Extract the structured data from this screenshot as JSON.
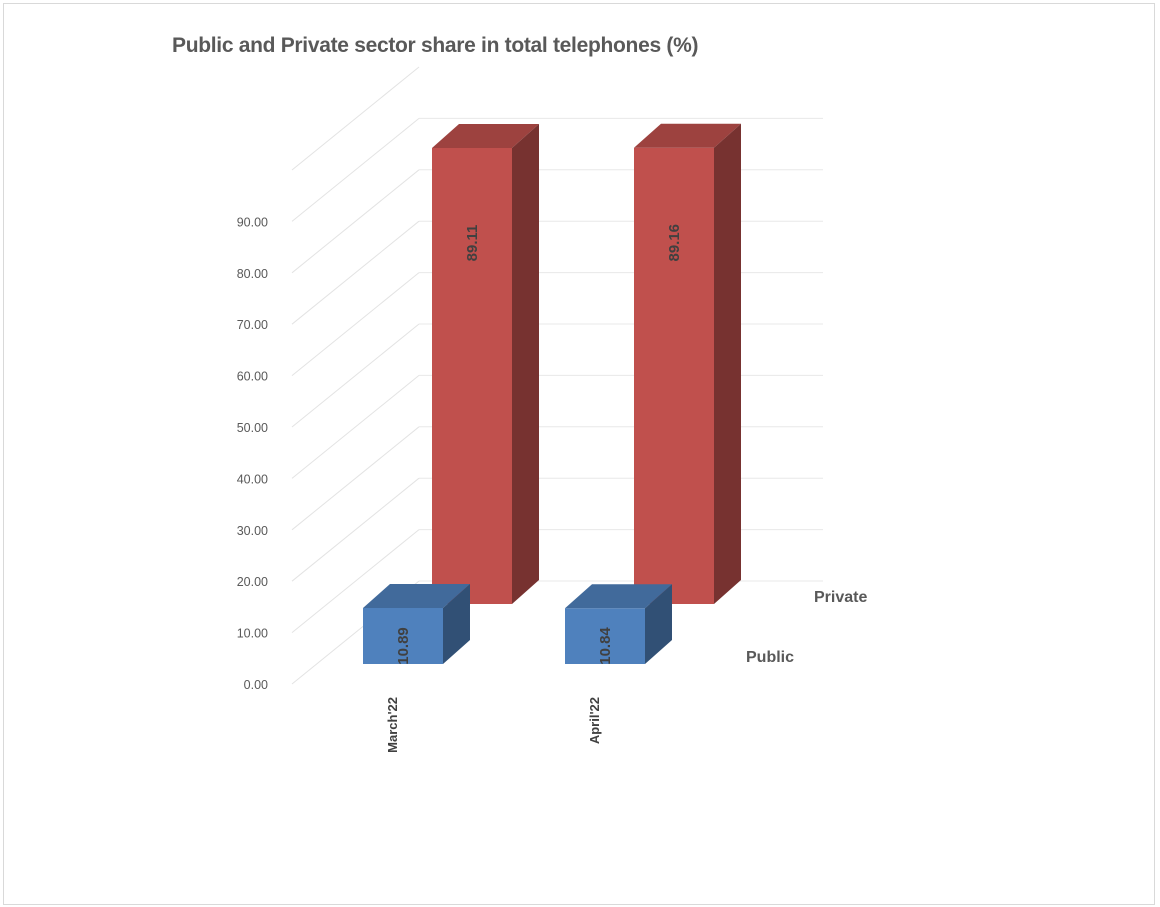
{
  "chart_data": {
    "type": "bar",
    "title": "Public and Private sector share in total telephones (%)",
    "categories": [
      "March'22",
      "April'22"
    ],
    "series": [
      {
        "name": "Private",
        "values": [
          89.11,
          89.16
        ],
        "color": "#c0504d"
      },
      {
        "name": "Public",
        "values": [
          10.89,
          10.84
        ],
        "color": "#4f81bd"
      }
    ],
    "data_labels": {
      "Private": [
        "89.11",
        "89.16"
      ],
      "Public": [
        "10.89",
        "10.84"
      ]
    },
    "ylim": [
      0,
      90
    ],
    "yticks": [
      "0.00",
      "10.00",
      "20.00",
      "30.00",
      "40.00",
      "50.00",
      "60.00",
      "70.00",
      "80.00",
      "90.00"
    ],
    "grid": true,
    "style": "3D clustered column",
    "xlabel": "",
    "ylabel": ""
  }
}
